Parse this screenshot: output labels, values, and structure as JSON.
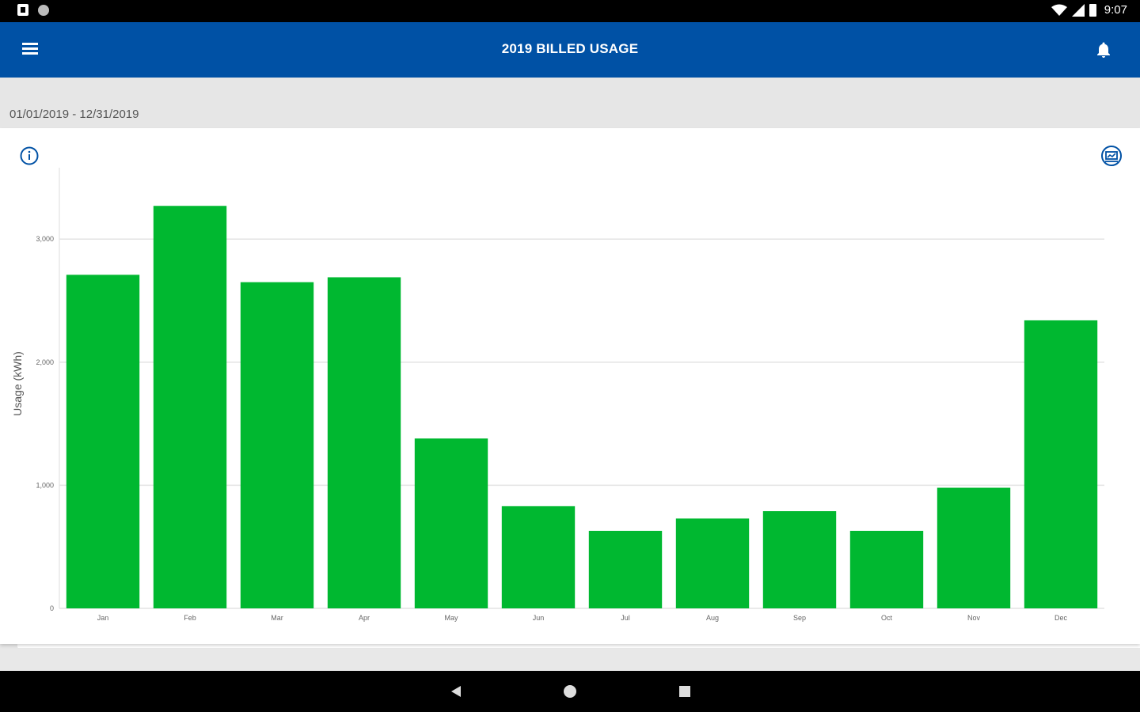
{
  "status_bar": {
    "time": "9:07",
    "icons": [
      "notification-icon",
      "circle-status-icon",
      "sd-card-icon",
      "wifi-icon",
      "signal-icon",
      "battery-icon"
    ]
  },
  "app_bar": {
    "title": "2019 BILLED USAGE",
    "menu_icon": "hamburger-menu-icon",
    "bell_icon": "notification-bell-icon"
  },
  "date_range": "01/01/2019 - 12/31/2019",
  "colors": {
    "app_bar": "#0051a5",
    "bars": "#00b830",
    "icon_accent": "#0051a5"
  },
  "chart_data": {
    "type": "bar",
    "categories": [
      "Jan",
      "Feb",
      "Mar",
      "Apr",
      "May",
      "Jun",
      "Jul",
      "Aug",
      "Sep",
      "Oct",
      "Nov",
      "Dec"
    ],
    "values": [
      2710,
      3270,
      2650,
      2690,
      1380,
      830,
      630,
      730,
      790,
      630,
      980,
      2340
    ],
    "ylabel": "Usage (kWh)",
    "xlabel": "",
    "yticks": [
      0,
      1000,
      2000,
      3000
    ],
    "ytick_labels": [
      "0",
      "1,000",
      "2,000",
      "3,000"
    ],
    "ylim": [
      0,
      3580
    ],
    "grid": true
  },
  "nav_bar": {
    "back_icon": "back-triangle-icon",
    "home_icon": "home-circle-icon",
    "recents_icon": "recents-square-icon"
  }
}
